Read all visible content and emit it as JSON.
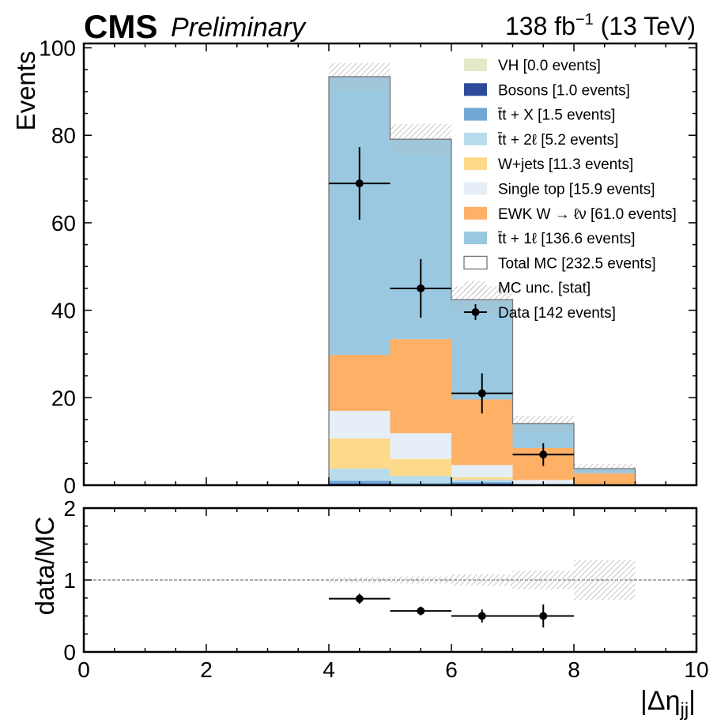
{
  "header": {
    "experiment": "CMS",
    "status": "Preliminary",
    "lumi_prefix": "138 fb",
    "lumi_exp": "−1",
    "lumi_suffix": " (13 TeV)"
  },
  "chart_data": {
    "type": "bar",
    "subtype": "stacked-histogram-with-ratio",
    "x_label": "|Δη_jj|",
    "x_label_main": "|Δη",
    "x_label_sub": "jj",
    "x_label_tail": "|",
    "y_label": "Events",
    "ratio_y_label": "data/MC",
    "xlim": [
      0,
      10
    ],
    "ylim": [
      0,
      101
    ],
    "ratio_ylim": [
      0,
      2
    ],
    "x_ticks": [
      0,
      2,
      4,
      6,
      8,
      10
    ],
    "y_ticks": [
      0,
      20,
      40,
      60,
      80,
      100
    ],
    "ratio_y_ticks": [
      0,
      1,
      2
    ],
    "bin_edges": [
      4,
      5,
      6,
      7,
      8,
      9
    ],
    "stack_order_bottom_to_top": [
      "VH",
      "Bosons",
      "ttX",
      "tt2l",
      "Wjets",
      "SingleTop",
      "EWKW",
      "tt1l"
    ],
    "series": [
      {
        "key": "VH",
        "name": "VH [0.0 events]",
        "color": "#e5e8c6",
        "values": [
          0,
          0,
          0,
          0,
          0
        ]
      },
      {
        "key": "Bosons",
        "name": "Bosons [1.0 events]",
        "color": "#2e4a9b",
        "values": [
          0.4,
          0.2,
          0.4,
          0,
          0
        ]
      },
      {
        "key": "ttX",
        "name": "t̄t + X [1.5 events]",
        "color": "#6fa8d4",
        "values": [
          0.6,
          0.3,
          0.3,
          0.2,
          0.1
        ]
      },
      {
        "key": "tt2l",
        "name": "t̄t + 2ℓ [5.2 events]",
        "color": "#b8dceb",
        "values": [
          2.8,
          1.6,
          0.6,
          0.2,
          0
        ]
      },
      {
        "key": "Wjets",
        "name": "W+jets [11.3 events]",
        "color": "#fdd98a",
        "values": [
          6.9,
          3.9,
          0.5,
          0,
          0
        ]
      },
      {
        "key": "SingleTop",
        "name": "Single top [15.9 events]",
        "color": "#e6eef7",
        "values": [
          6.3,
          5.9,
          2.8,
          0.8,
          0.1
        ]
      },
      {
        "key": "EWKW",
        "name": "EWK W → ℓν [61.0 events]",
        "color": "#fdb066",
        "values": [
          12.8,
          21.5,
          15.0,
          7.3,
          2.5
        ]
      },
      {
        "key": "tt1l",
        "name": "t̄t + 1ℓ [136.6 events]",
        "color": "#9ac8e0",
        "values": [
          63.6,
          45.7,
          22.8,
          5.6,
          1.1
        ]
      }
    ],
    "total_mc": {
      "name": "Total MC [232.5 events]",
      "values": [
        93.4,
        79.1,
        42.4,
        14.1,
        3.8
      ]
    },
    "mc_unc": {
      "name": "MC unc. [stat]",
      "values": [
        3.1,
        3.5,
        3.1,
        1.8,
        1.1
      ]
    },
    "data": {
      "name": "Data [142 events]",
      "x": [
        4.5,
        5.5,
        6.5,
        7.5
      ],
      "values": [
        69,
        45,
        21,
        7
      ],
      "errors": [
        8.3,
        6.7,
        4.6,
        2.6
      ]
    },
    "ratio": {
      "x": [
        4.5,
        5.5,
        6.5,
        7.5
      ],
      "values": [
        0.74,
        0.57,
        0.5,
        0.5
      ],
      "errors": [
        0.07,
        0.06,
        0.09,
        0.16
      ],
      "unc_band": [
        0.04,
        0.05,
        0.08,
        0.13,
        0.28
      ],
      "reference_line": 1
    },
    "legend_position": "top-right",
    "grid": false
  }
}
